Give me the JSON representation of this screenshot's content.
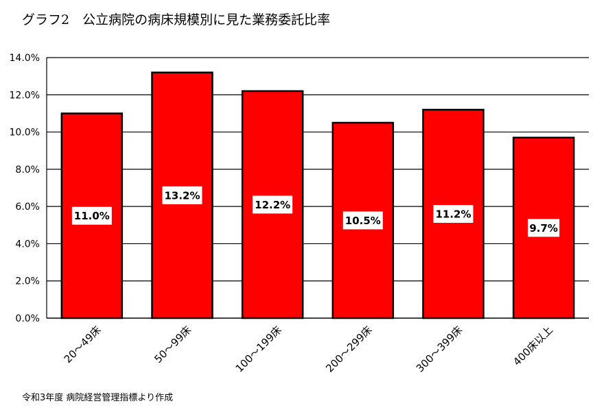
{
  "title": "グラフ2　公立病院の病床規模別に見た業務委託比率",
  "source_note": "令和3年度 病院経営管理指標より作成",
  "colors": {
    "bar": "#ff0000",
    "bar_stroke": "#000000",
    "grid": "#000000",
    "label_bg": "#ffffff"
  },
  "chart_data": {
    "type": "bar",
    "title": "グラフ2　公立病院の病床規模別に見た業務委託比率",
    "categories": [
      "20～49床",
      "50～99床",
      "100～199床",
      "200～299床",
      "300～399床",
      "400床以上"
    ],
    "values": [
      11.0,
      13.2,
      12.2,
      10.5,
      11.2,
      9.7
    ],
    "data_labels": [
      "11.0%",
      "13.2%",
      "12.2%",
      "10.5%",
      "11.2%",
      "9.7%"
    ],
    "yticks": [
      "0.0%",
      "2.0%",
      "4.0%",
      "6.0%",
      "8.0%",
      "10.0%",
      "12.0%",
      "14.0%"
    ],
    "ylim": [
      0,
      14
    ],
    "ystep": 2,
    "grid": true,
    "legend": "none",
    "xlabel": "",
    "ylabel": ""
  }
}
